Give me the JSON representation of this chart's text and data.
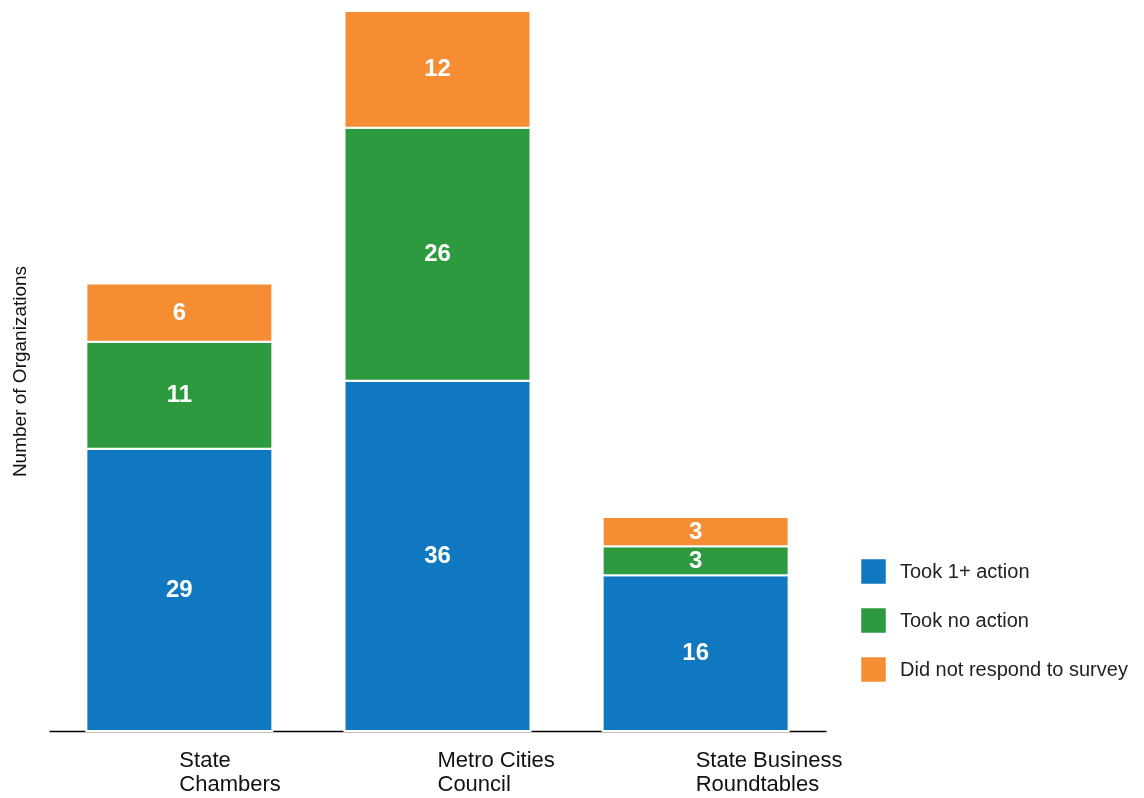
{
  "chart_data": {
    "type": "bar",
    "stacked": true,
    "ylabel": "Number of Organizations",
    "categories": [
      "State Chambers",
      "Metro Cities Council",
      "State Business Roundtables"
    ],
    "series": [
      {
        "name": "Took 1+ action",
        "color": "#1078c0",
        "values": [
          29,
          36,
          16
        ]
      },
      {
        "name": "Took no action",
        "color": "#2e9a40",
        "values": [
          11,
          26,
          3
        ]
      },
      {
        "name": "Did not respond to survey",
        "color": "#f68d33",
        "values": [
          6,
          12,
          3
        ]
      }
    ],
    "data_labels": true,
    "legend": "right",
    "grid": false
  }
}
